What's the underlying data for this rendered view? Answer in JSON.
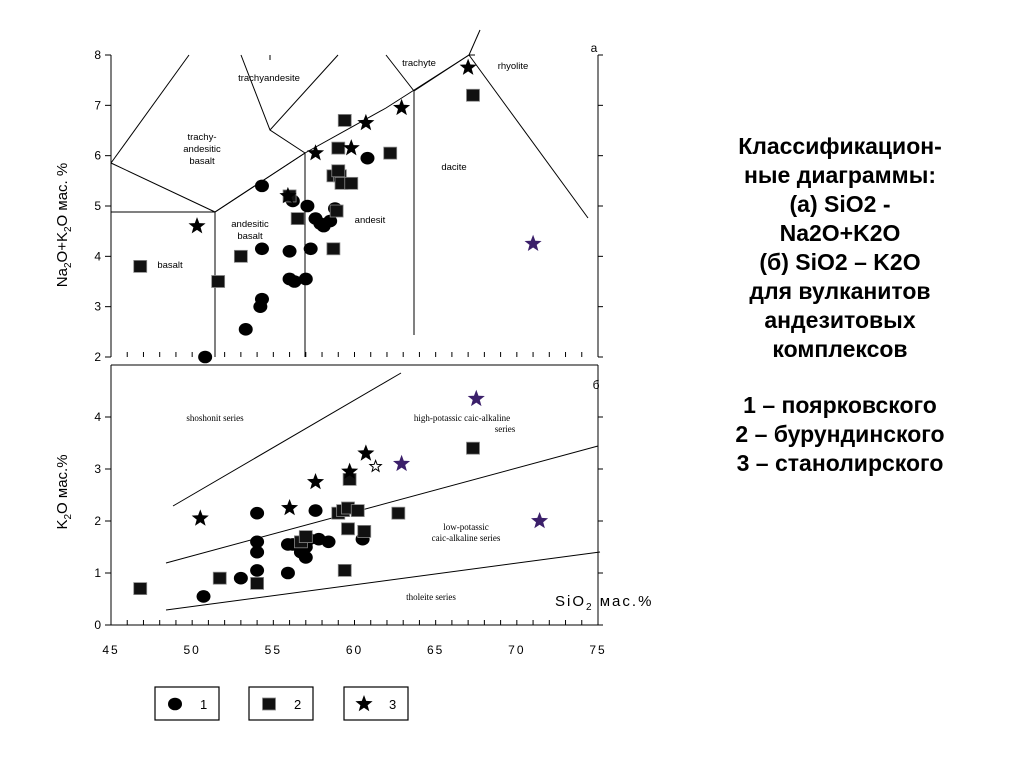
{
  "caption": {
    "title_lines": [
      "Классификацион-",
      "ные диаграммы:",
      "(а) SiO2 -",
      "Na2O+K2O",
      "(б) SiO2 – K2O",
      "для вулканитов",
      "андезитовых",
      "комплексов"
    ],
    "legend_lines": [
      "1 – поярковского",
      "2 – бурундинского",
      "3 – станолирского"
    ]
  },
  "chart_data": [
    {
      "id": "a",
      "panel_label": "а",
      "type": "scatter",
      "ylabel": "Na2O+K2O мас. %",
      "xlim": [
        45,
        75
      ],
      "ylim": [
        2,
        8
      ],
      "yticks": [
        2,
        3,
        4,
        5,
        6,
        7,
        8
      ],
      "fields": [
        "trachyandesite",
        "trachy-andesitic basalt",
        "trachyte",
        "rhyolite",
        "basalt",
        "andesitic basalt",
        "andesit",
        "dacite"
      ],
      "series": [
        {
          "name": "1",
          "marker": "circle",
          "points": [
            [
              50.8,
              2.0
            ],
            [
              53.3,
              2.55
            ],
            [
              54.2,
              3.0
            ],
            [
              54.3,
              3.15
            ],
            [
              54.3,
              5.4
            ],
            [
              54.3,
              4.15
            ],
            [
              56.0,
              3.55
            ],
            [
              56.0,
              4.1
            ],
            [
              56.3,
              3.5
            ],
            [
              57.0,
              3.55
            ],
            [
              57.3,
              4.15
            ],
            [
              57.1,
              5.0
            ],
            [
              57.6,
              4.75
            ],
            [
              57.9,
              4.65
            ],
            [
              58.1,
              4.6
            ],
            [
              58.5,
              4.7
            ],
            [
              58.8,
              4.95
            ],
            [
              60.8,
              5.95
            ],
            [
              56.2,
              5.1
            ]
          ]
        },
        {
          "name": "2",
          "marker": "square",
          "points": [
            [
              46.8,
              3.8
            ],
            [
              51.6,
              3.5
            ],
            [
              53.0,
              4.0
            ],
            [
              56.0,
              5.2
            ],
            [
              56.5,
              4.75
            ],
            [
              58.7,
              4.15
            ],
            [
              58.9,
              4.9
            ],
            [
              58.7,
              5.6
            ],
            [
              59.1,
              5.6
            ],
            [
              59.0,
              5.7
            ],
            [
              59.2,
              5.45
            ],
            [
              59.8,
              5.45
            ],
            [
              59.0,
              6.15
            ],
            [
              59.4,
              6.7
            ],
            [
              62.2,
              6.05
            ],
            [
              67.3,
              7.2
            ]
          ]
        },
        {
          "name": "3",
          "marker": "star",
          "points": [
            [
              50.3,
              4.6
            ],
            [
              55.9,
              5.2
            ],
            [
              57.6,
              6.05
            ],
            [
              59.8,
              6.15
            ],
            [
              60.7,
              6.65
            ],
            [
              62.9,
              6.95
            ],
            [
              67.0,
              7.75
            ],
            [
              71.0,
              4.25,
              "purple"
            ]
          ]
        }
      ]
    },
    {
      "id": "b",
      "panel_label": "б",
      "type": "scatter",
      "ylabel": "K2O мас.%",
      "xlabel": "SiO2 мас.%",
      "xlim": [
        45,
        75
      ],
      "ylim": [
        0,
        5
      ],
      "xticks": [
        45,
        50,
        55,
        60,
        65,
        70,
        75
      ],
      "yticks": [
        0,
        1,
        2,
        3,
        4
      ],
      "fields": [
        "shoshonit series",
        "high-potassic caic-alkaline series",
        "low-potassic caic-alkaline series",
        "tholeite series"
      ],
      "series": [
        {
          "name": "1",
          "marker": "circle",
          "points": [
            [
              50.7,
              0.55
            ],
            [
              53.0,
              0.9
            ],
            [
              54.0,
              1.05
            ],
            [
              54.0,
              1.4
            ],
            [
              54.0,
              1.6
            ],
            [
              54.0,
              2.15
            ],
            [
              55.9,
              1.0
            ],
            [
              55.9,
              1.55
            ],
            [
              56.2,
              1.55
            ],
            [
              56.7,
              1.6
            ],
            [
              56.7,
              1.4
            ],
            [
              57.0,
              1.5
            ],
            [
              57.0,
              1.3
            ],
            [
              57.2,
              1.65
            ],
            [
              57.6,
              2.2
            ],
            [
              57.8,
              1.65
            ],
            [
              58.4,
              1.6
            ],
            [
              60.5,
              1.65
            ]
          ]
        },
        {
          "name": "2",
          "marker": "square",
          "points": [
            [
              46.8,
              0.7
            ],
            [
              51.7,
              0.9
            ],
            [
              54.0,
              0.8
            ],
            [
              56.7,
              1.6
            ],
            [
              57.0,
              1.7
            ],
            [
              59.0,
              2.15
            ],
            [
              59.3,
              2.2
            ],
            [
              59.6,
              2.25
            ],
            [
              60.2,
              2.2
            ],
            [
              60.6,
              1.8
            ],
            [
              59.6,
              1.85
            ],
            [
              59.4,
              1.05
            ],
            [
              59.7,
              2.8
            ],
            [
              62.7,
              2.15
            ],
            [
              67.3,
              3.4
            ]
          ]
        },
        {
          "name": "3",
          "marker": "star",
          "points": [
            [
              50.5,
              2.05
            ],
            [
              56.0,
              2.25
            ],
            [
              57.6,
              2.75
            ],
            [
              59.7,
              2.95
            ],
            [
              60.7,
              3.3
            ],
            [
              61.3,
              3.05,
              "hollow"
            ],
            [
              62.9,
              3.1,
              "purple"
            ],
            [
              67.5,
              4.35,
              "purple"
            ],
            [
              71.4,
              2.0,
              "purple"
            ]
          ]
        }
      ]
    }
  ],
  "legend": [
    {
      "label": "1",
      "marker": "circle"
    },
    {
      "label": "2",
      "marker": "square"
    },
    {
      "label": "3",
      "marker": "star"
    }
  ],
  "colors": {
    "ink": "#000000",
    "purple": "#3b1f6a",
    "square_fill": "#111111"
  }
}
